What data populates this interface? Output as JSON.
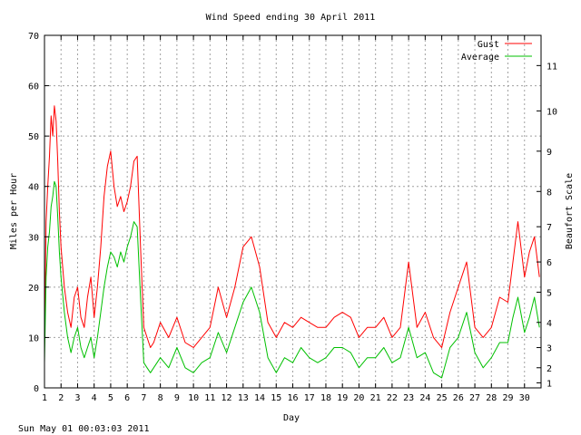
{
  "chart_data": {
    "type": "line",
    "title": "Wind Speed ending 30 April 2011",
    "xlabel": "Day",
    "ylabel": "Miles per Hour",
    "y2label": "Beaufort Scale",
    "footer": "Sun May 01 00:03:03 2011",
    "xlim": [
      1,
      31
    ],
    "ylim": [
      0,
      70
    ],
    "x_ticks": [
      "1",
      "2",
      "3",
      "4",
      "5",
      "6",
      "7",
      "8",
      "9",
      "10",
      "11",
      "12",
      "13",
      "14",
      "15",
      "16",
      "17",
      "18",
      "19",
      "20",
      "21",
      "22",
      "23",
      "24",
      "25",
      "26",
      "27",
      "28",
      "29",
      "30"
    ],
    "y_ticks": [
      0,
      10,
      20,
      30,
      40,
      50,
      60,
      70
    ],
    "beaufort_ticks": [
      {
        "label": "1",
        "mph": 1
      },
      {
        "label": "2",
        "mph": 4
      },
      {
        "label": "3",
        "mph": 8
      },
      {
        "label": "4",
        "mph": 13
      },
      {
        "label": "5",
        "mph": 19
      },
      {
        "label": "6",
        "mph": 25
      },
      {
        "label": "7",
        "mph": 32
      },
      {
        "label": "8",
        "mph": 39
      },
      {
        "label": "9",
        "mph": 47
      },
      {
        "label": "10",
        "mph": 55
      },
      {
        "label": "11",
        "mph": 64
      }
    ],
    "grid": true,
    "legend_position": "top-right",
    "series": [
      {
        "name": "Gust",
        "color": "#ff0000",
        "x": [
          1.0,
          1.1,
          1.2,
          1.3,
          1.4,
          1.5,
          1.6,
          1.7,
          1.8,
          1.9,
          2.0,
          2.2,
          2.4,
          2.6,
          2.8,
          3.0,
          3.2,
          3.4,
          3.6,
          3.8,
          4.0,
          4.2,
          4.4,
          4.6,
          4.8,
          5.0,
          5.2,
          5.4,
          5.6,
          5.8,
          6.0,
          6.2,
          6.4,
          6.6,
          6.8,
          7.0,
          7.2,
          7.4,
          7.6,
          7.8,
          8.0,
          8.5,
          9.0,
          9.5,
          10.0,
          10.5,
          11.0,
          11.5,
          12.0,
          12.5,
          13.0,
          13.5,
          14.0,
          14.5,
          15.0,
          15.5,
          16.0,
          16.5,
          17.0,
          17.5,
          18.0,
          18.5,
          19.0,
          19.5,
          20.0,
          20.5,
          21.0,
          21.5,
          22.0,
          22.5,
          23.0,
          23.5,
          24.0,
          24.5,
          25.0,
          25.5,
          26.0,
          26.5,
          27.0,
          27.5,
          28.0,
          28.5,
          29.0,
          29.3,
          29.6,
          30.0,
          30.3,
          30.6,
          30.9
        ],
        "y": [
          8,
          33,
          40,
          46,
          54,
          50,
          56,
          53,
          45,
          35,
          28,
          20,
          15,
          12,
          18,
          20,
          14,
          12,
          18,
          22,
          14,
          20,
          28,
          38,
          44,
          47,
          40,
          36,
          38,
          35,
          37,
          40,
          45,
          46,
          28,
          12,
          10,
          8,
          9,
          11,
          13,
          10,
          14,
          9,
          8,
          10,
          12,
          20,
          14,
          20,
          28,
          30,
          24,
          13,
          10,
          13,
          12,
          14,
          13,
          12,
          12,
          14,
          15,
          14,
          10,
          12,
          12,
          14,
          10,
          12,
          25,
          12,
          15,
          10,
          8,
          15,
          20,
          25,
          12,
          10,
          12,
          18,
          17,
          25,
          33,
          22,
          27,
          30,
          22
        ]
      },
      {
        "name": "Average",
        "color": "#00c000",
        "x": [
          1.0,
          1.1,
          1.2,
          1.3,
          1.4,
          1.5,
          1.6,
          1.7,
          1.8,
          1.9,
          2.0,
          2.2,
          2.4,
          2.6,
          2.8,
          3.0,
          3.2,
          3.4,
          3.6,
          3.8,
          4.0,
          4.2,
          4.4,
          4.6,
          4.8,
          5.0,
          5.2,
          5.4,
          5.6,
          5.8,
          6.0,
          6.2,
          6.4,
          6.6,
          6.8,
          7.0,
          7.2,
          7.4,
          7.6,
          7.8,
          8.0,
          8.5,
          9.0,
          9.5,
          10.0,
          10.5,
          11.0,
          11.5,
          12.0,
          12.5,
          13.0,
          13.5,
          14.0,
          14.5,
          15.0,
          15.5,
          16.0,
          16.5,
          17.0,
          17.5,
          18.0,
          18.5,
          19.0,
          19.5,
          20.0,
          20.5,
          21.0,
          21.5,
          22.0,
          22.5,
          23.0,
          23.5,
          24.0,
          24.5,
          25.0,
          25.5,
          26.0,
          26.5,
          27.0,
          27.5,
          28.0,
          28.5,
          29.0,
          29.3,
          29.6,
          30.0,
          30.3,
          30.6,
          30.9
        ],
        "y": [
          5,
          22,
          28,
          31,
          36,
          38,
          41,
          40,
          34,
          27,
          22,
          15,
          10,
          7,
          10,
          12,
          8,
          6,
          8,
          10,
          6,
          10,
          15,
          20,
          24,
          27,
          26,
          24,
          27,
          25,
          28,
          30,
          33,
          32,
          18,
          5,
          4,
          3,
          4,
          5,
          6,
          4,
          8,
          4,
          3,
          5,
          6,
          11,
          7,
          12,
          17,
          20,
          15,
          6,
          3,
          6,
          5,
          8,
          6,
          5,
          6,
          8,
          8,
          7,
          4,
          6,
          6,
          8,
          5,
          6,
          12,
          6,
          7,
          3,
          2,
          8,
          10,
          15,
          7,
          4,
          6,
          9,
          9,
          14,
          18,
          11,
          14,
          18,
          12
        ]
      }
    ]
  }
}
